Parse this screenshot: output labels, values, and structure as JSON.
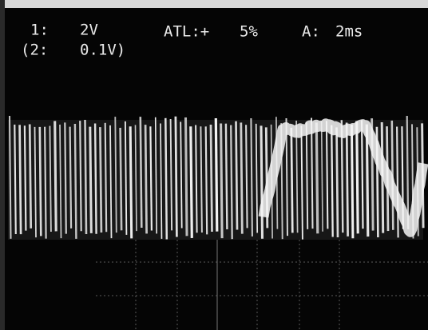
{
  "readout": {
    "line1": [
      "1:",
      "2V",
      "ATL:+",
      "5%",
      "A:",
      "2ms"
    ],
    "line2": [
      "(2:",
      "0.1V)"
    ]
  }
}
